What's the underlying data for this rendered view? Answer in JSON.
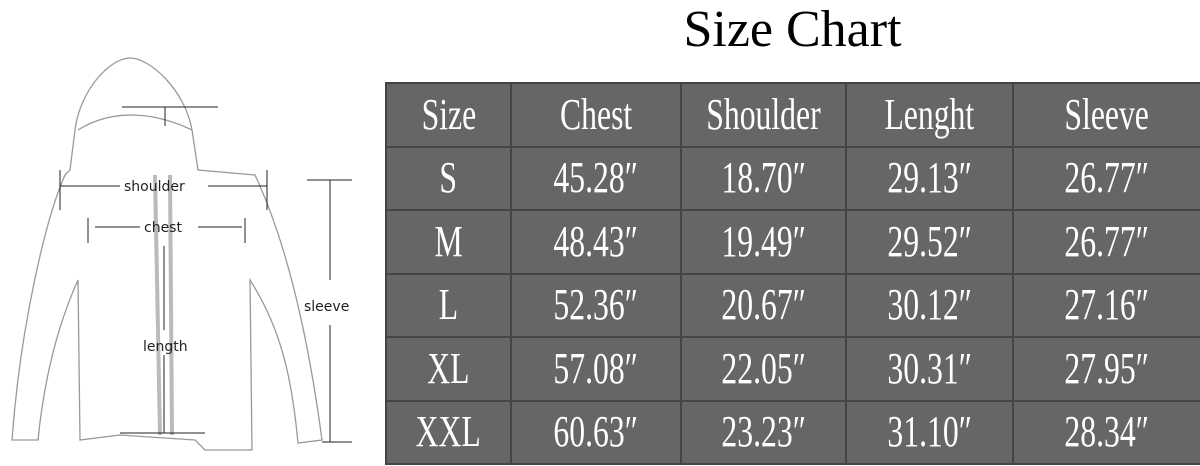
{
  "title": "Size Chart",
  "diagram": {
    "labels": {
      "shoulder": "shoulder",
      "chest": "chest",
      "length": "length",
      "sleeve": "sleeve"
    }
  },
  "table": {
    "headers": [
      "Size",
      "Chest",
      "Shoulder",
      "Lenght",
      "Sleeve"
    ],
    "rows": [
      [
        "S",
        "45.28″",
        "18.70″",
        "29.13″",
        "26.77″"
      ],
      [
        "M",
        "48.43″",
        "19.49″",
        "29.52″",
        "26.77″"
      ],
      [
        "L",
        "52.36″",
        "20.67″",
        "30.12″",
        "27.16″"
      ],
      [
        "XL",
        "57.08″",
        "22.05″",
        "30.31″",
        "27.95″"
      ],
      [
        "XXL",
        "60.63″",
        "23.23″",
        "31.10″",
        "28.34″"
      ]
    ],
    "colors": {
      "cell_bg": "#666666",
      "border": "#444444",
      "text": "#ffffff"
    }
  }
}
